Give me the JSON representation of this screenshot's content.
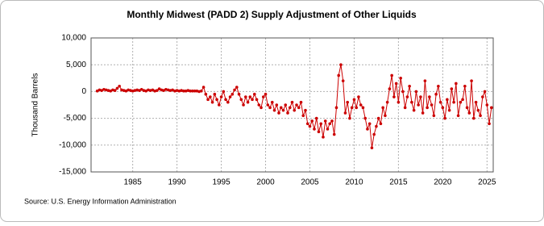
{
  "chart_data": {
    "type": "line",
    "title": "Monthly Midwest (PADD 2) Supply Adjustment of Other Liquids",
    "y_label": "Thousand Barrels",
    "source": "Source: U.S. Energy Information Administration",
    "xlim": [
      1980.3,
      2025.7
    ],
    "xticks": [
      1985,
      1990,
      1995,
      2000,
      2005,
      2010,
      2015,
      2020,
      2025
    ],
    "ylim": [
      -15000,
      10000
    ],
    "yticks": [
      {
        "value": -15000,
        "label": "-15,000"
      },
      {
        "value": -10000,
        "label": "-10,000"
      },
      {
        "value": -5000,
        "label": "-5,000"
      },
      0,
      {
        "value": 5000,
        "label": "5,000"
      },
      {
        "value": 10000,
        "label": "10,000"
      }
    ],
    "grid": true,
    "series": [
      {
        "name": "Midwest (PADD 2) Supply Adjustment of Other Liquids",
        "color": "#cc0000",
        "x": [
          1981,
          1981.25,
          1981.5,
          1981.75,
          1982,
          1982.25,
          1982.5,
          1982.75,
          1983,
          1983.25,
          1983.5,
          1983.75,
          1984,
          1984.25,
          1984.5,
          1984.75,
          1985,
          1985.25,
          1985.5,
          1985.75,
          1986,
          1986.25,
          1986.5,
          1986.75,
          1987,
          1987.25,
          1987.5,
          1987.75,
          1988,
          1988.25,
          1988.5,
          1988.75,
          1989,
          1989.25,
          1989.5,
          1989.75,
          1990,
          1990.25,
          1990.5,
          1990.75,
          1991,
          1991.25,
          1991.5,
          1991.75,
          1992,
          1992.25,
          1992.5,
          1992.75,
          1993,
          1993.25,
          1993.5,
          1993.75,
          1994,
          1994.25,
          1994.5,
          1994.75,
          1995,
          1995.25,
          1995.5,
          1995.75,
          1996,
          1996.25,
          1996.5,
          1996.75,
          1997,
          1997.25,
          1997.5,
          1997.75,
          1998,
          1998.25,
          1998.5,
          1998.75,
          1999,
          1999.25,
          1999.5,
          1999.75,
          2000,
          2000.25,
          2000.5,
          2000.75,
          2001,
          2001.25,
          2001.5,
          2001.75,
          2002,
          2002.25,
          2002.5,
          2002.75,
          2003,
          2003.25,
          2003.5,
          2003.75,
          2004,
          2004.25,
          2004.5,
          2004.75,
          2005,
          2005.25,
          2005.5,
          2005.75,
          2006,
          2006.25,
          2006.5,
          2006.75,
          2007,
          2007.25,
          2007.5,
          2007.75,
          2008,
          2008.25,
          2008.5,
          2008.75,
          2009,
          2009.25,
          2009.5,
          2009.75,
          2010,
          2010.25,
          2010.5,
          2010.75,
          2011,
          2011.25,
          2011.5,
          2011.75,
          2012,
          2012.25,
          2012.5,
          2012.75,
          2013,
          2013.25,
          2013.5,
          2013.75,
          2014,
          2014.25,
          2014.5,
          2014.75,
          2015,
          2015.25,
          2015.5,
          2015.75,
          2016,
          2016.25,
          2016.5,
          2016.75,
          2017,
          2017.25,
          2017.5,
          2017.75,
          2018,
          2018.25,
          2018.5,
          2018.75,
          2019,
          2019.25,
          2019.5,
          2019.75,
          2020,
          2020.25,
          2020.5,
          2020.75,
          2021,
          2021.25,
          2021.5,
          2021.75,
          2022,
          2022.25,
          2022.5,
          2022.75,
          2023,
          2023.25,
          2023.5,
          2023.75,
          2024,
          2024.25,
          2024.5,
          2024.75,
          2025,
          2025.25,
          2025.5
        ],
        "values": [
          100,
          300,
          200,
          400,
          300,
          200,
          100,
          300,
          200,
          600,
          1000,
          300,
          200,
          100,
          300,
          200,
          100,
          200,
          300,
          200,
          400,
          200,
          100,
          300,
          200,
          300,
          100,
          200,
          500,
          300,
          200,
          400,
          300,
          200,
          300,
          100,
          200,
          100,
          200,
          100,
          100,
          200,
          100,
          100,
          100,
          100,
          0,
          100,
          800,
          -500,
          -1500,
          -1000,
          -2000,
          -500,
          -1500,
          -2500,
          -1000,
          0,
          -1500,
          -2000,
          -1000,
          -500,
          300,
          800,
          -500,
          -1500,
          -2500,
          -1000,
          -2000,
          -1000,
          -1500,
          -500,
          -1500,
          -2500,
          -3000,
          -1000,
          -500,
          -2500,
          -3000,
          -2000,
          -3500,
          -2500,
          -4000,
          -3000,
          -3500,
          -2500,
          -4000,
          -3000,
          -2000,
          -3500,
          -2500,
          -3000,
          -2000,
          -4500,
          -3500,
          -6000,
          -6500,
          -5500,
          -7000,
          -5000,
          -7500,
          -6000,
          -8500,
          -5500,
          -7000,
          -6000,
          -5500,
          -8000,
          -3000,
          3000,
          5000,
          2000,
          -4000,
          -2000,
          -5000,
          -3000,
          -1500,
          -3000,
          -1000,
          -2500,
          -3000,
          -5000,
          -7000,
          -6000,
          -10500,
          -8000,
          -6500,
          -5000,
          -6000,
          -3000,
          -4500,
          -2000,
          500,
          3000,
          -1000,
          1500,
          -2000,
          2500,
          0,
          -3000,
          -1000,
          1000,
          -2000,
          -3500,
          0,
          -2500,
          -1000,
          -4000,
          2000,
          -3000,
          -1000,
          -2500,
          -4500,
          -500,
          1000,
          -2000,
          -3000,
          -5000,
          -1500,
          -3500,
          500,
          -2000,
          1500,
          -4500,
          -2000,
          -1500,
          1000,
          -3000,
          -4000,
          2000,
          -5000,
          -2000,
          -3500,
          -4500,
          -1000,
          0,
          -2500,
          -6000,
          -3000
        ]
      }
    ]
  }
}
